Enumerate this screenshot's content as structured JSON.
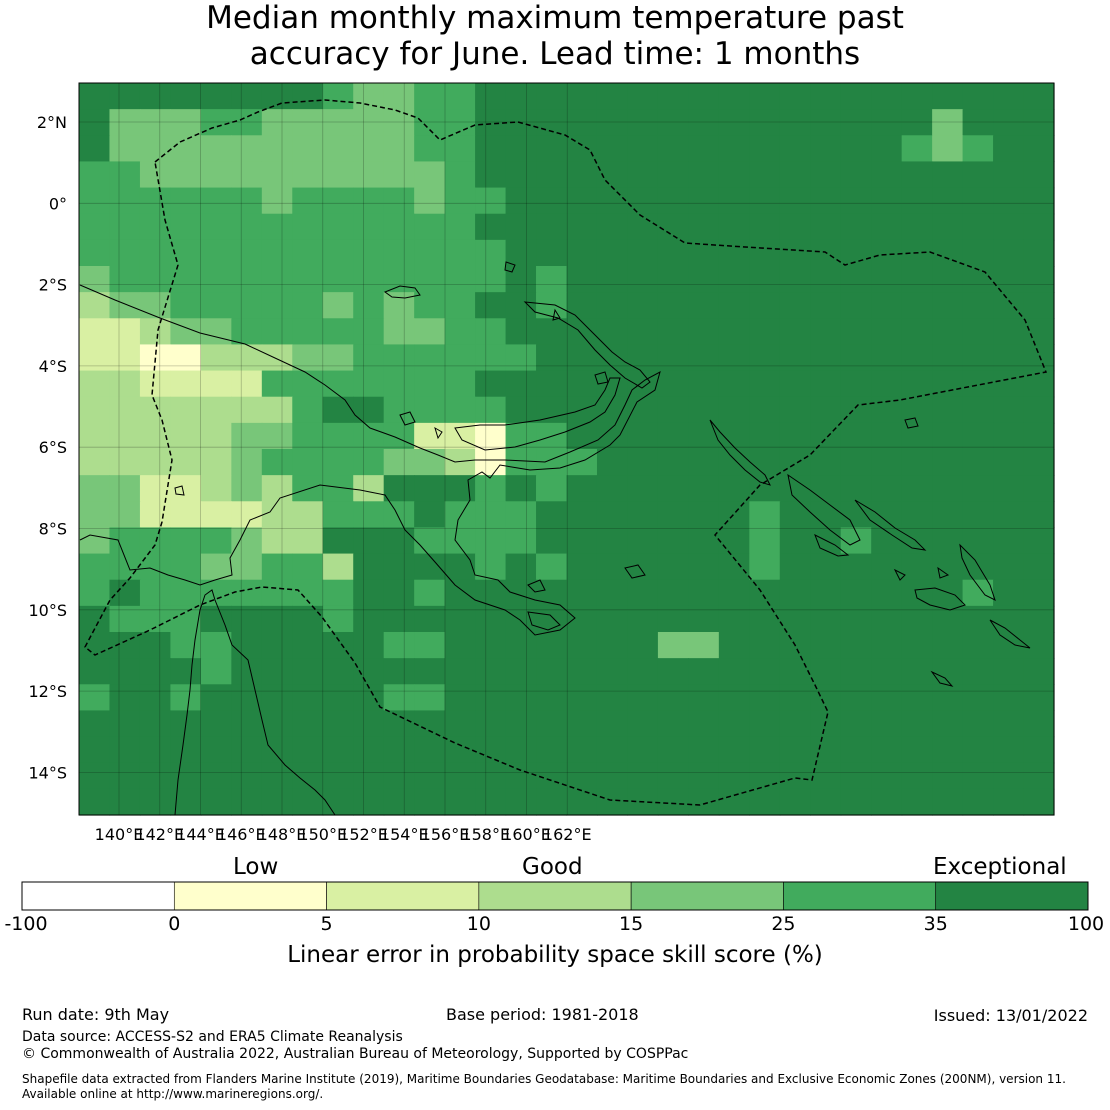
{
  "title": {
    "line1": "Median monthly maximum temperature past",
    "line2": "accuracy for June. Lead time: 1 months"
  },
  "map": {
    "lon_labels": [
      "140°E",
      "142°E",
      "144°E",
      "146°E",
      "148°E",
      "150°E",
      "152°E",
      "154°E",
      "156°E",
      "158°E",
      "160°E",
      "162°E"
    ],
    "lat_labels": [
      "2°N",
      "0°",
      "2°S",
      "4°S",
      "6°S",
      "8°S",
      "10°S",
      "12°S",
      "14°S"
    ],
    "grid": "on",
    "colors": {
      "b0": "#ffffff",
      "b1": "#ffffcc",
      "b2": "#d9f0a3",
      "b3": "#addd8e",
      "b4": "#78c679",
      "b5": "#41ab5d",
      "b6": "#238443",
      "coast": "#000000"
    }
  },
  "legend": {
    "categories": [
      "Low",
      "Good",
      "Exceptional"
    ],
    "ticks": [
      "-100",
      "0",
      "5",
      "10",
      "15",
      "25",
      "35",
      "100"
    ],
    "title": "Linear error in probability space skill score (%)",
    "colors": [
      "#ffffff",
      "#ffffcc",
      "#d9f0a3",
      "#addd8e",
      "#78c679",
      "#41ab5d",
      "#238443"
    ]
  },
  "footer": {
    "run_date": "Run date: 9th May",
    "base_period": "Base period: 1981-2018",
    "issued": "Issued: 13/01/2022",
    "data_source": "Data source: ACCESS-S2 and ERA5 Climate Reanalysis",
    "copyright": "© Commonwealth of Australia 2022, Australian Bureau of Meteorology, Supported by COSPPac",
    "shapefile_line1": "Shapefile data extracted from Flanders Marine Institute (2019), Maritime Boundaries Geodatabase: Maritime Boundaries and Exclusive Economic Zones (200NM), version 11.",
    "shapefile_line2": "Available online at http://www.marineregions.org/."
  }
}
